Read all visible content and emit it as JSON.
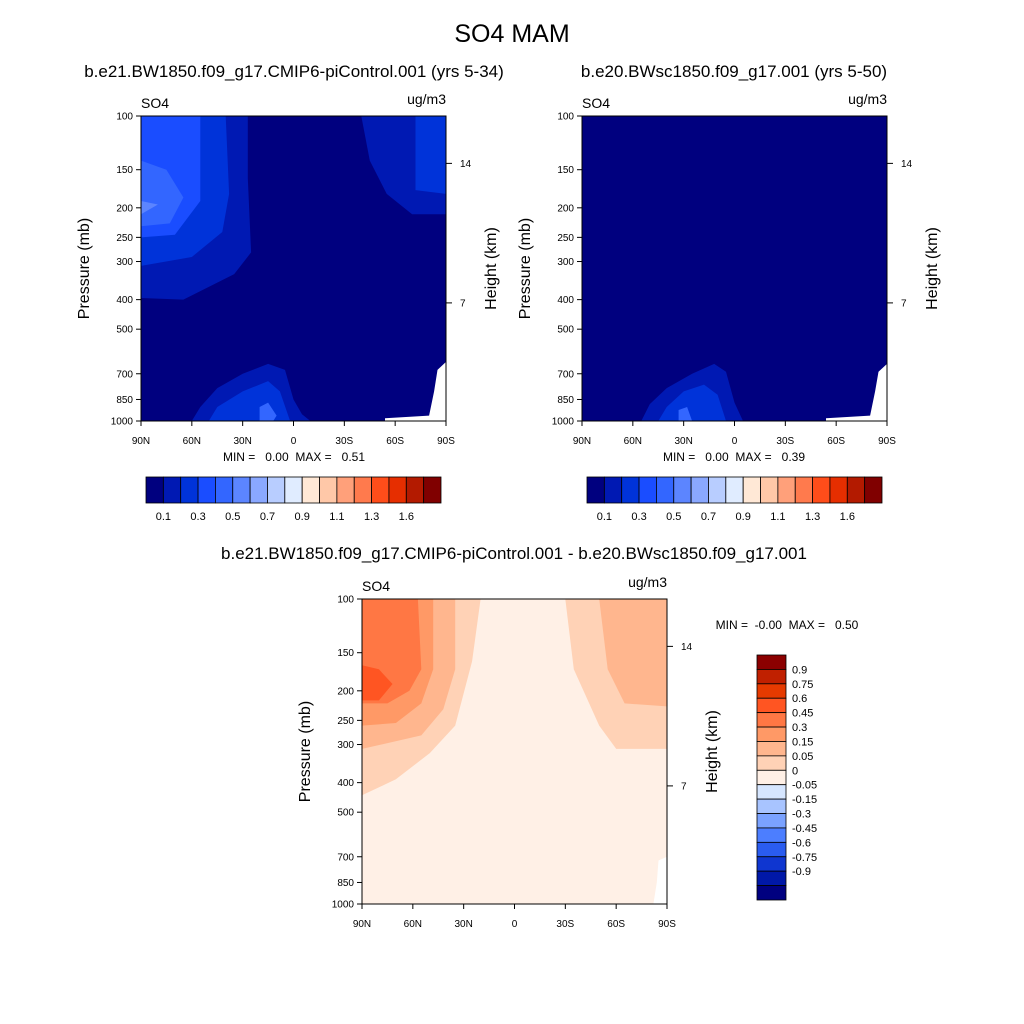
{
  "page_title": "SO4 MAM",
  "chart_data": [
    {
      "type": "contour",
      "title": "b.e21.BW1850.f09_g17.CMIP6-piControl.001 (yrs 5-34)",
      "left_label": "SO4",
      "units": "ug/m3",
      "ylabel": "Pressure (mb)",
      "ylabel_right": "Height (km)",
      "pressure_ticks": [
        "100",
        "150",
        "200",
        "250",
        "300",
        "400",
        "500",
        "700",
        "850",
        "1000"
      ],
      "height_ticks": [
        "14",
        "7"
      ],
      "lat_ticks": [
        "90N",
        "60N",
        "30N",
        "0",
        "30S",
        "60S",
        "90S"
      ],
      "stats": "MIN =   0.00  MAX =   0.51",
      "colorbar_labels": [
        "0.1",
        "0.3",
        "0.5",
        "0.7",
        "0.9",
        "1.1",
        "1.3",
        "1.6"
      ],
      "colorbar_colors": [
        "#00007f",
        "#0019b3",
        "#0033d9",
        "#1a4dff",
        "#3366ff",
        "#5c85ff",
        "#8aa8ff",
        "#b8cdff",
        "#e0ecff",
        "#ffe8d6",
        "#ffc8a8",
        "#ffa07a",
        "#ff7a4d",
        "#ff4d1a",
        "#e62e00",
        "#b31a00",
        "#800000"
      ],
      "field_max": 0.51
    },
    {
      "type": "contour",
      "title": "b.e20.BWsc1850.f09_g17.001 (yrs 5-50)",
      "left_label": "SO4",
      "units": "ug/m3",
      "ylabel": "Pressure (mb)",
      "ylabel_right": "Height (km)",
      "pressure_ticks": [
        "100",
        "150",
        "200",
        "250",
        "300",
        "400",
        "500",
        "700",
        "850",
        "1000"
      ],
      "height_ticks": [
        "14",
        "7"
      ],
      "lat_ticks": [
        "90N",
        "60N",
        "30N",
        "0",
        "30S",
        "60S",
        "90S"
      ],
      "stats": "MIN =   0.00  MAX =   0.39",
      "colorbar_labels": [
        "0.1",
        "0.3",
        "0.5",
        "0.7",
        "0.9",
        "1.1",
        "1.3",
        "1.6"
      ],
      "colorbar_colors": [
        "#00007f",
        "#0019b3",
        "#0033d9",
        "#1a4dff",
        "#3366ff",
        "#5c85ff",
        "#8aa8ff",
        "#b8cdff",
        "#e0ecff",
        "#ffe8d6",
        "#ffc8a8",
        "#ffa07a",
        "#ff7a4d",
        "#ff4d1a",
        "#e62e00",
        "#b31a00",
        "#800000"
      ],
      "field_max": 0.39
    },
    {
      "type": "contour",
      "title": "b.e21.BW1850.f09_g17.CMIP6-piControl.001 - b.e20.BWsc1850.f09_g17.001",
      "left_label": "SO4",
      "units": "ug/m3",
      "ylabel": "Pressure (mb)",
      "ylabel_right": "Height (km)",
      "pressure_ticks": [
        "100",
        "150",
        "200",
        "250",
        "300",
        "400",
        "500",
        "700",
        "850",
        "1000"
      ],
      "height_ticks": [
        "14",
        "7"
      ],
      "lat_ticks": [
        "90N",
        "60N",
        "30N",
        "0",
        "30S",
        "60S",
        "90S"
      ],
      "stats": "MIN =  -0.00  MAX =   0.50",
      "colorbar_labels": [
        "0.9",
        "0.75",
        "0.6",
        "0.45",
        "0.3",
        "0.15",
        "0.05",
        "0",
        "-0.05",
        "-0.15",
        "-0.3",
        "-0.45",
        "-0.6",
        "-0.75",
        "-0.9"
      ],
      "colorbar_colors": [
        "#8b0000",
        "#c02000",
        "#e63a00",
        "#ff5522",
        "#ff7744",
        "#ff9966",
        "#ffb68e",
        "#ffd2b6",
        "#fff0e6",
        "#d6e6ff",
        "#a8c4ff",
        "#7aa2ff",
        "#4c7eff",
        "#2a5cf0",
        "#0f36d0",
        "#0018a8",
        "#000080"
      ],
      "field_max": 0.5
    }
  ]
}
